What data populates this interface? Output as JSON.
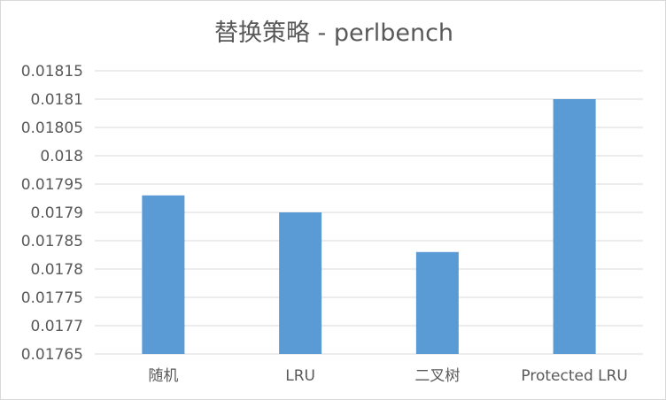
{
  "chart_data": {
    "type": "bar",
    "title": "替换策略 - perlbench",
    "categories": [
      "随机",
      "LRU",
      "二叉树",
      "Protected LRU"
    ],
    "series": [
      {
        "values": [
          0.01793,
          0.0179,
          0.01783,
          0.0181
        ]
      }
    ],
    "ylim": [
      0.01765,
      0.01815
    ],
    "yticks": [
      "0.01765",
      "0.0177",
      "0.01775",
      "0.0178",
      "0.01785",
      "0.0179",
      "0.01795",
      "0.018",
      "0.01805",
      "0.0181",
      "0.01815"
    ],
    "xlabel": "",
    "ylabel": "",
    "grid": true,
    "legend": "none",
    "colors": {
      "bar": "#5b9bd5",
      "grid": "#d9d9d9",
      "text": "#595959"
    }
  }
}
